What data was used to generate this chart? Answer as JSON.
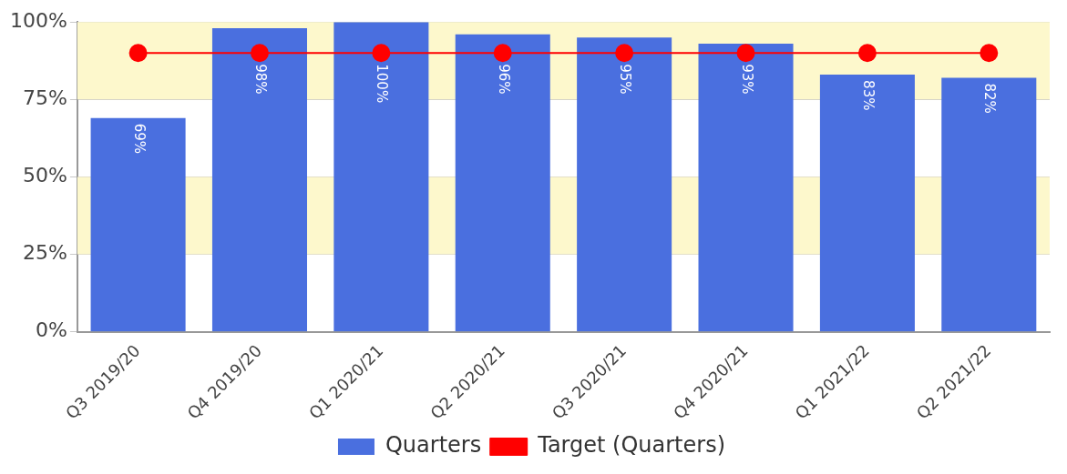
{
  "chart_data": {
    "type": "bar",
    "categories": [
      "Q3 2019/20",
      "Q4 2019/20",
      "Q1 2020/21",
      "Q2 2020/21",
      "Q3 2020/21",
      "Q4 2020/21",
      "Q1 2021/22",
      "Q2 2021/22"
    ],
    "series": [
      {
        "name": "Quarters",
        "color": "#4a6fdf",
        "values": [
          69,
          98,
          100,
          96,
          95,
          93,
          83,
          82
        ],
        "value_labels": [
          "69%",
          "98%",
          "100%",
          "96%",
          "95%",
          "93%",
          "83%",
          "82%"
        ]
      },
      {
        "name": "Target (Quarters)",
        "type": "line",
        "color": "#ff0000",
        "values": [
          90,
          90,
          90,
          90,
          90,
          90,
          90,
          90
        ]
      }
    ],
    "ylim": [
      0,
      100
    ],
    "yticks": [
      {
        "value": 0,
        "label": "0%"
      },
      {
        "value": 25,
        "label": "25%"
      },
      {
        "value": 50,
        "label": "50%"
      },
      {
        "value": 75,
        "label": "75%"
      },
      {
        "value": 100,
        "label": "100%"
      }
    ],
    "bands": [
      {
        "axis": "y",
        "from": 25,
        "to": 50,
        "color": "#fdf8cc"
      },
      {
        "axis": "y",
        "from": 75,
        "to": 100,
        "color": "#fdf8cc"
      }
    ],
    "grid": "y",
    "legend": "bottom",
    "marker": "circle",
    "line_style": "solid"
  }
}
